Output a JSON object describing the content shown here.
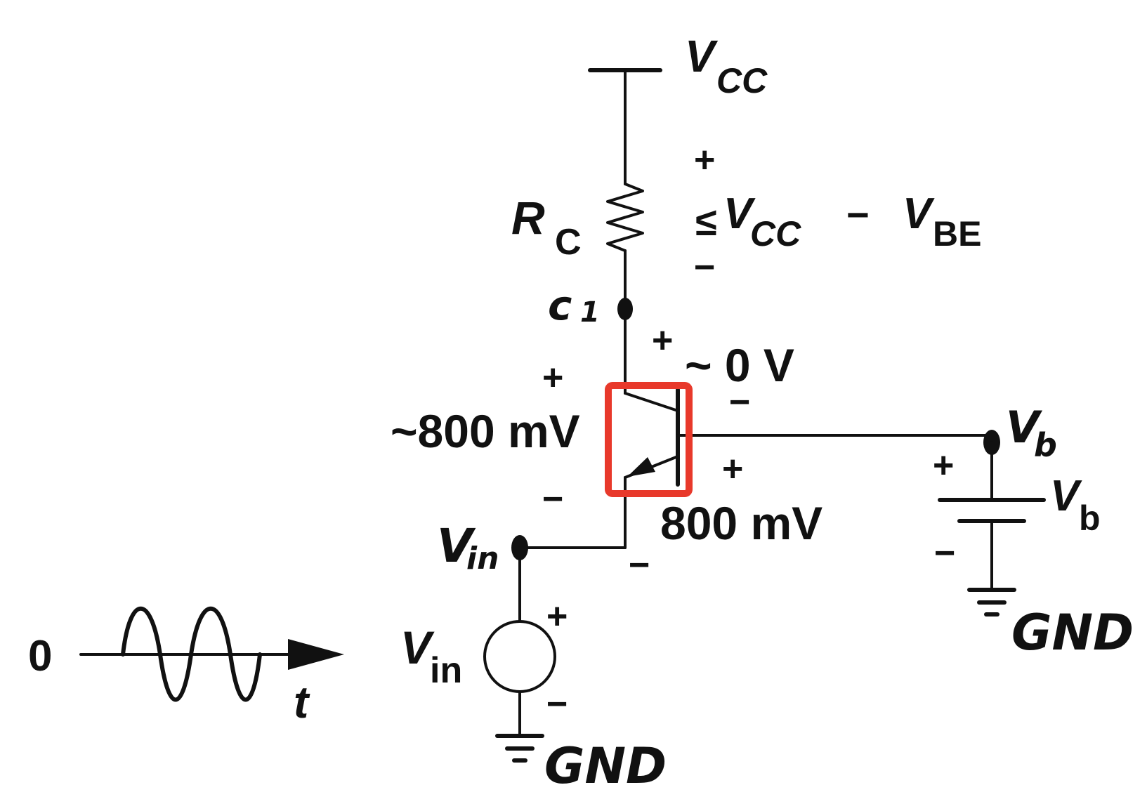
{
  "labels": {
    "vcc_main": "V",
    "vcc_main_sub": "CC",
    "rc_main": "R",
    "rc_sub": "C",
    "rc_drop_plus": "+",
    "rc_drop_symbol": "≤",
    "rc_drop_v1": "V",
    "rc_drop_v1_sub": "CC",
    "rc_drop_minus_op": "−",
    "rc_drop_v2": "V",
    "rc_drop_v2_sub": "BE",
    "rc_drop_minus": "−",
    "node_c1": "c",
    "node_c1_sub": "1",
    "vcb_plus": "+",
    "vcb_value": "~ 0 V",
    "vcb_minus": "−",
    "vce_plus": "+",
    "vce_value": "~800 mV",
    "vce_minus": "−",
    "vbe_plus": "+",
    "vbe_value": "800 mV",
    "vbe_minus": "−",
    "node_vin": "V",
    "node_vin_sub": "in",
    "node_vb": "V",
    "node_vb_sub": "b",
    "src_vin": "V",
    "src_vin_sub": "in",
    "src_plus": "+",
    "src_minus": "−",
    "bat_vb": "V",
    "bat_vb_sub": "b",
    "bat_plus": "+",
    "bat_minus": "−",
    "gnd_left": "GND",
    "gnd_right": "GND",
    "wave_zero": "0",
    "wave_t": "t"
  },
  "colors": {
    "highlight": "#e8392b",
    "ink": "#111111"
  }
}
